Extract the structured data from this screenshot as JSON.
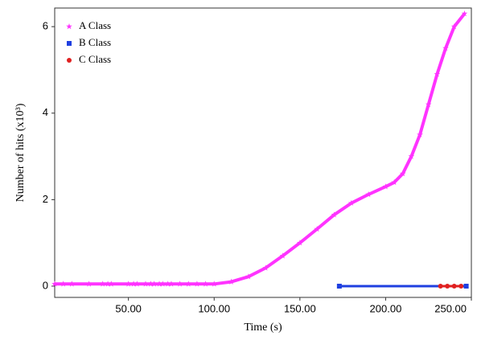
{
  "chart_data": {
    "type": "scatter",
    "x_label": "Time (s)",
    "y_label": "Number of hits (x10³)",
    "xlim": [
      7,
      250
    ],
    "ylim": [
      -0.26,
      6.43
    ],
    "xticks": [
      {
        "value": 50,
        "label": "50.00"
      },
      {
        "value": 100,
        "label": "100.00"
      },
      {
        "value": 150,
        "label": "150.00"
      },
      {
        "value": 200,
        "label": "200.00"
      },
      {
        "value": 250,
        "label": "250.00"
      }
    ],
    "yticks": [
      0,
      2,
      4,
      6
    ],
    "legend": "upper left",
    "series": [
      {
        "name": "A Class",
        "color": "#ff33ff",
        "marker": "star",
        "x": [
          7,
          12,
          17,
          27,
          35,
          38,
          40,
          50,
          53,
          55,
          60,
          63,
          65,
          68,
          70,
          73,
          75,
          80,
          85,
          90,
          95,
          100,
          110,
          120,
          130,
          140,
          150,
          160,
          170,
          180,
          190,
          200,
          205,
          210,
          215,
          220,
          225,
          230,
          235,
          240,
          246
        ],
        "values": [
          0.05,
          0.05,
          0.05,
          0.05,
          0.05,
          0.05,
          0.05,
          0.05,
          0.05,
          0.05,
          0.05,
          0.05,
          0.05,
          0.05,
          0.05,
          0.05,
          0.05,
          0.05,
          0.05,
          0.05,
          0.05,
          0.05,
          0.1,
          0.22,
          0.42,
          0.7,
          1.0,
          1.32,
          1.65,
          1.92,
          2.12,
          2.3,
          2.4,
          2.6,
          3.0,
          3.5,
          4.2,
          4.9,
          5.5,
          6.0,
          6.3
        ]
      },
      {
        "name": "B Class",
        "color": "#1f3fe0",
        "marker": "square",
        "x": [
          173,
          247
        ],
        "values": [
          0,
          0
        ]
      },
      {
        "name": "C Class",
        "color": "#e02020",
        "marker": "circle",
        "x": [
          232,
          236,
          240,
          244
        ],
        "values": [
          0,
          0,
          0,
          0
        ]
      }
    ]
  }
}
